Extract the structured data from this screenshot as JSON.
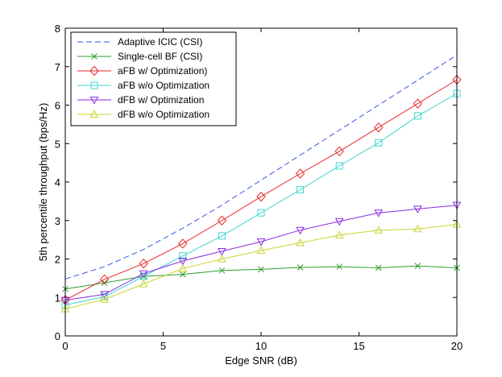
{
  "chart_data": {
    "type": "line",
    "title": "",
    "xlabel": "Edge SNR (dB)",
    "ylabel": "5th percentile throughput (bps/Hz)",
    "xlim": [
      0,
      20
    ],
    "ylim": [
      0,
      8
    ],
    "xticks": [
      0,
      5,
      10,
      15,
      20
    ],
    "yticks": [
      0,
      1,
      2,
      3,
      4,
      5,
      6,
      7,
      8
    ],
    "grid": false,
    "legend_position": "top-left",
    "series": [
      {
        "name": "Adaptive ICIC (CSI)",
        "color": "#3a53e8",
        "line_style": "dashed",
        "marker": "none",
        "x": [
          0,
          2,
          4,
          6,
          8,
          10,
          12,
          14,
          16,
          18,
          20
        ],
        "y": [
          1.48,
          1.8,
          2.25,
          2.8,
          3.4,
          4.05,
          4.7,
          5.35,
          6.0,
          6.65,
          7.3
        ]
      },
      {
        "name": "Single-cell BF (CSI)",
        "color": "#2e9e2e",
        "line_style": "solid",
        "marker": "x",
        "x": [
          0,
          2,
          4,
          6,
          8,
          10,
          12,
          14,
          16,
          18,
          20
        ],
        "y": [
          1.22,
          1.38,
          1.55,
          1.6,
          1.7,
          1.73,
          1.78,
          1.8,
          1.77,
          1.82,
          1.77
        ]
      },
      {
        "name": "aFB w/ Optimization)",
        "color": "#e8262a",
        "line_style": "solid",
        "marker": "diamond",
        "x": [
          0,
          2,
          4,
          6,
          8,
          10,
          12,
          14,
          16,
          18,
          20
        ],
        "y": [
          0.93,
          1.47,
          1.88,
          2.4,
          3.0,
          3.62,
          4.22,
          4.8,
          5.42,
          6.04,
          6.66
        ]
      },
      {
        "name": "aFB w/o Optimization",
        "color": "#3fd6d0",
        "line_style": "solid",
        "marker": "square",
        "x": [
          0,
          2,
          4,
          6,
          8,
          10,
          12,
          14,
          16,
          18,
          20
        ],
        "y": [
          0.8,
          1.02,
          1.55,
          2.08,
          2.6,
          3.2,
          3.8,
          4.42,
          5.02,
          5.72,
          6.3
        ]
      },
      {
        "name": "dFB w/ Optimization",
        "color": "#8a2be2",
        "line_style": "solid",
        "marker": "triangle-down",
        "x": [
          0,
          2,
          4,
          6,
          8,
          10,
          12,
          14,
          16,
          18,
          20
        ],
        "y": [
          0.93,
          1.08,
          1.62,
          1.95,
          2.2,
          2.45,
          2.75,
          2.98,
          3.2,
          3.3,
          3.4
        ]
      },
      {
        "name": "dFB w/o Optimization",
        "color": "#c8d62b",
        "line_style": "solid",
        "marker": "triangle-up",
        "x": [
          0,
          2,
          4,
          6,
          8,
          10,
          12,
          14,
          16,
          18,
          20
        ],
        "y": [
          0.7,
          0.95,
          1.35,
          1.75,
          2.0,
          2.22,
          2.42,
          2.62,
          2.75,
          2.78,
          2.9
        ]
      }
    ]
  }
}
